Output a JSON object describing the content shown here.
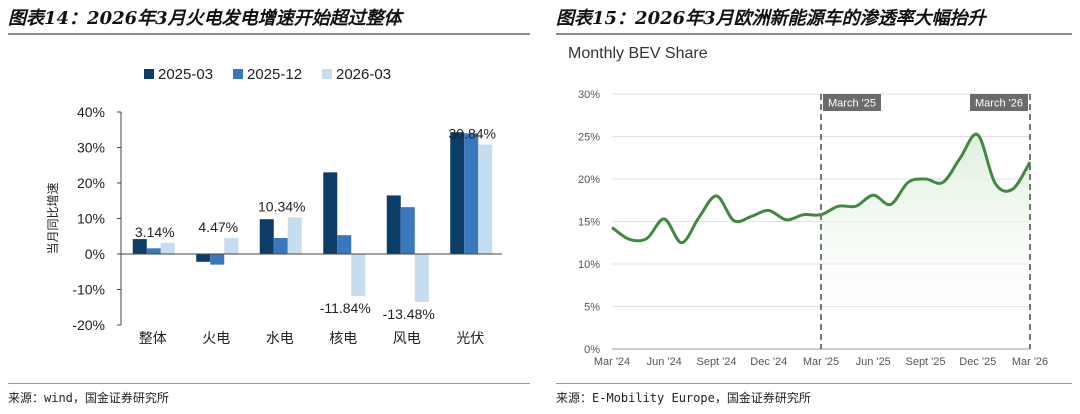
{
  "left": {
    "title": "图表14：2026年3月火电发电增速开始超过整体",
    "source": "来源：wind，国金证券研究所"
  },
  "right": {
    "title": "图表15：2026年3月欧洲新能源车的渗透率大幅抬升",
    "source": "来源：E-Mobility Europe，国金证券研究所"
  },
  "colors": {
    "series_2025_03": "#0b3d66",
    "series_2025_12": "#3a78bd",
    "series_2026_03": "#c6dcef",
    "bev_line": "#3f8a3f",
    "bev_fill": "#dcefd9"
  },
  "chart_data": [
    {
      "type": "bar",
      "title": "",
      "xlabel": "",
      "ylabel": "当月同比增速",
      "ylim": [
        -20,
        40
      ],
      "yticks": [
        "40%",
        "30%",
        "20%",
        "10%",
        "0%",
        "-10%",
        "-20%"
      ],
      "legend_position": "top",
      "categories": [
        "整体",
        "火电",
        "水电",
        "核电",
        "风电",
        "光伏"
      ],
      "series": [
        {
          "name": "2025-03",
          "values": [
            4.2,
            -2.2,
            9.8,
            23.0,
            16.5,
            34.3
          ]
        },
        {
          "name": "2025-12",
          "values": [
            1.6,
            -3.0,
            4.5,
            5.3,
            13.2,
            34.0
          ]
        },
        {
          "name": "2026-03",
          "values": [
            3.14,
            4.47,
            10.34,
            -11.84,
            -13.48,
            30.84
          ]
        }
      ],
      "data_labels": [
        "3.14%",
        "4.47%",
        "10.34%",
        "-11.84%",
        "-13.48%",
        "30.84%"
      ]
    },
    {
      "type": "area",
      "title": "Monthly BEV Share",
      "xlabel": "",
      "ylabel": "",
      "ylim": [
        0,
        30
      ],
      "yticks": [
        "30%",
        "25%",
        "20%",
        "15%",
        "10%",
        "5%",
        "0%"
      ],
      "xticks": [
        "Mar '24",
        "Jun '24",
        "Sept '24",
        "Dec '24",
        "Mar '25",
        "Jun '25",
        "Sept '25",
        "Dec '25",
        "Mar '26"
      ],
      "grid": true,
      "markers": [
        "March '25",
        "March '26"
      ],
      "x": [
        "Mar '24",
        "Apr '24",
        "May '24",
        "Jun '24",
        "Jul '24",
        "Aug '24",
        "Sep '24",
        "Oct '24",
        "Nov '24",
        "Dec '24",
        "Jan '25",
        "Feb '25",
        "Mar '25",
        "Apr '25",
        "May '25",
        "Jun '25",
        "Jul '25",
        "Aug '25",
        "Sep '25",
        "Oct '25",
        "Nov '25",
        "Dec '25",
        "Jan '26",
        "Feb '26",
        "Mar '26"
      ],
      "values": [
        14.3,
        12.9,
        13.0,
        15.3,
        12.5,
        15.5,
        18.0,
        15.1,
        15.6,
        16.3,
        15.2,
        15.8,
        15.8,
        16.8,
        16.8,
        18.1,
        17.0,
        19.6,
        20.0,
        19.6,
        22.5,
        25.2,
        19.5,
        18.8,
        22.0
      ]
    }
  ]
}
